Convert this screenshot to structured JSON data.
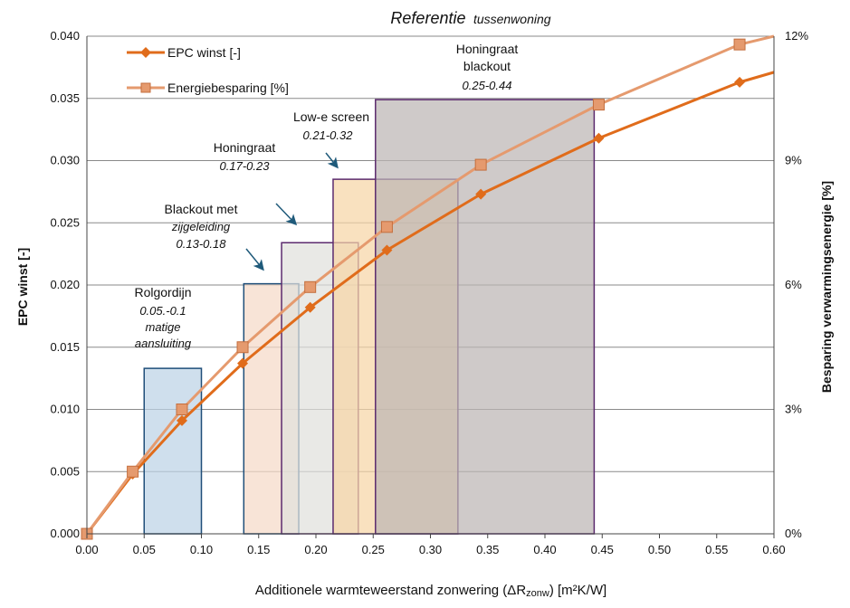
{
  "chart_data": {
    "type": "line",
    "title": "Referentie",
    "subtitle": "tussenwoning",
    "xlabel_main": "Additionele warmteweerstand zonwering (ΔR",
    "xlabel_sub": "zonw",
    "xlabel_end": ") [m²K/W]",
    "ylabel": "EPC winst  [-]",
    "y2label": "Besparing verwarmingsenergie [%]",
    "xlim": [
      0,
      0.6
    ],
    "ylim": [
      0,
      0.04
    ],
    "y2lim": [
      0,
      12
    ],
    "x_ticks": [
      "0.00",
      "0.05",
      "0.10",
      "0.15",
      "0.20",
      "0.25",
      "0.30",
      "0.35",
      "0.40",
      "0.45",
      "0.50",
      "0.55",
      "0.60"
    ],
    "y_ticks": [
      "0.000",
      "0.005",
      "0.010",
      "0.015",
      "0.020",
      "0.025",
      "0.030",
      "0.035",
      "0.040"
    ],
    "y2_ticks": [
      "0%",
      "3%",
      "6%",
      "9%",
      "12%"
    ],
    "grid": true,
    "legend_position": "top-left",
    "series": [
      {
        "name": "EPC winst [-]",
        "axis": "left",
        "color": "#E06C1B",
        "marker": "diamond",
        "x": [
          0,
          0.04,
          0.083,
          0.136,
          0.195,
          0.262,
          0.344,
          0.447,
          0.57,
          0.6
        ],
        "y": [
          0,
          0.0048,
          0.0091,
          0.0137,
          0.0182,
          0.0228,
          0.0273,
          0.0318,
          0.0363,
          0.0371
        ]
      },
      {
        "name": "Energiebesparing [%]",
        "axis": "right",
        "color": "#E59A6E",
        "marker": "square",
        "x": [
          0,
          0.04,
          0.083,
          0.136,
          0.195,
          0.262,
          0.344,
          0.447,
          0.57,
          0.6
        ],
        "y": [
          0,
          1.5,
          3.0,
          4.5,
          5.95,
          7.4,
          8.9,
          10.35,
          11.8,
          12.2
        ]
      }
    ],
    "rectangles": [
      {
        "label": "Rolgordijn",
        "range": "0.05.-0.1",
        "note": "matige aansluiting",
        "x0": 0.05,
        "x1": 0.1,
        "y": 0.0133,
        "fill": "#bcd3e6",
        "stroke": "#1f4e79"
      },
      {
        "label": "Blackout met",
        "label2": "zijgeleiding",
        "range": "0.13-0.18",
        "x0": 0.137,
        "x1": 0.185,
        "y": 0.0201,
        "fill": "#f5d9c8",
        "stroke": "#1f4e79"
      },
      {
        "label": "Honingraat",
        "range": "0.17-0.23",
        "x0": 0.17,
        "x1": 0.237,
        "y": 0.0234,
        "fill": "#e0e0dc",
        "stroke": "#5b2a6e"
      },
      {
        "label": "Low-e screen",
        "range": "0.21-0.32",
        "x0": 0.215,
        "x1": 0.324,
        "y": 0.0285,
        "fill": "#f7d5a6",
        "stroke": "#5b2a6e"
      },
      {
        "label": "Honingraat",
        "label2": "blackout",
        "range": "0.25-0.44",
        "x0": 0.252,
        "x1": 0.443,
        "y": 0.0349,
        "fill": "#bdb6b4",
        "stroke": "#5b2a6e"
      }
    ]
  }
}
